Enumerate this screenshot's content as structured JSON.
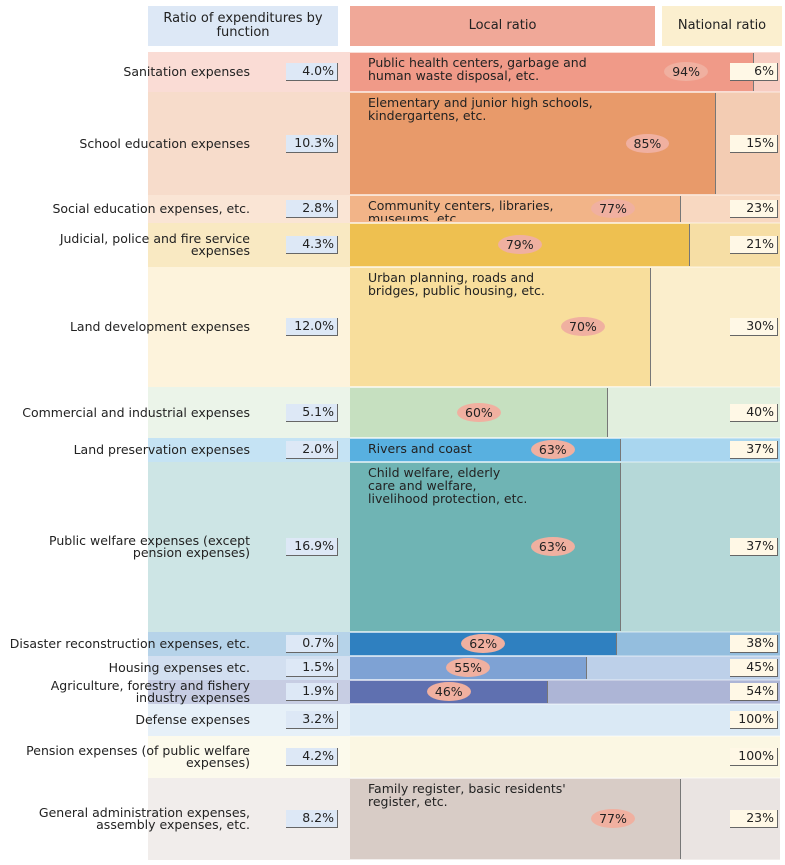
{
  "chart_data": {
    "type": "mekko",
    "headers": [
      "Ratio of expenditures by function",
      "Local ratio",
      "National ratio"
    ],
    "rows": [
      {
        "name": "Sanitation expenses",
        "share": 4.0,
        "share_label": "4.0%",
        "local": 94,
        "local_label": "94%",
        "national": 6,
        "national_label": "6%",
        "description": "Public health centers, garbage and human waste disposal, etc.",
        "color": "#f09a88"
      },
      {
        "name": "School education expenses",
        "share": 10.3,
        "share_label": "10.3%",
        "local": 85,
        "local_label": "85%",
        "national": 15,
        "national_label": "15%",
        "description": "Elementary and junior high schools, kindergartens, etc.",
        "color": "#e89a6a"
      },
      {
        "name": "Social education expenses, etc.",
        "share": 2.8,
        "share_label": "2.8%",
        "local": 77,
        "local_label": "77%",
        "national": 23,
        "national_label": "23%",
        "description": "Community centers, libraries, museums, etc.",
        "color": "#f2b488"
      },
      {
        "name": "Judicial, police and fire service expenses",
        "share": 4.3,
        "share_label": "4.3%",
        "local": 79,
        "local_label": "79%",
        "national": 21,
        "national_label": "21%",
        "color": "#eec050"
      },
      {
        "name": "Land development expenses",
        "share": 12.0,
        "share_label": "12.0%",
        "local": 70,
        "local_label": "70%",
        "national": 30,
        "national_label": "30%",
        "description": "Urban planning, roads and bridges, public housing, etc.",
        "color": "#f8de9c"
      },
      {
        "name": "Commercial and industrial expenses",
        "share": 5.1,
        "share_label": "5.1%",
        "local": 60,
        "local_label": "60%",
        "national": 40,
        "national_label": "40%",
        "color": "#c6e0c0"
      },
      {
        "name": "Land preservation expenses",
        "share": 2.0,
        "share_label": "2.0%",
        "local": 63,
        "local_label": "63%",
        "national": 37,
        "national_label": "37%",
        "description": "Rivers and coast",
        "color": "#58b0e0"
      },
      {
        "name": "Public welfare expenses (except pension expenses)",
        "share": 16.9,
        "share_label": "16.9%",
        "local": 63,
        "local_label": "63%",
        "national": 37,
        "national_label": "37%",
        "description": "Child welfare, elderly care and welfare, livelihood protection, etc.",
        "color": "#6fb4b4"
      },
      {
        "name": "Disaster reconstruction expenses, etc.",
        "share": 0.7,
        "share_label": "0.7%",
        "local": 62,
        "local_label": "62%",
        "national": 38,
        "national_label": "38%",
        "color": "#2f80c0"
      },
      {
        "name": "Housing expenses etc.",
        "share": 1.5,
        "share_label": "1.5%",
        "local": 55,
        "local_label": "55%",
        "national": 45,
        "national_label": "45%",
        "color": "#7ea2d4"
      },
      {
        "name": "Agriculture, forestry and fishery industry expenses",
        "share": 1.9,
        "share_label": "1.9%",
        "local": 46,
        "local_label": "46%",
        "national": 54,
        "national_label": "54%",
        "color": "#5f70b0"
      },
      {
        "name": "Defense expenses",
        "share": 3.2,
        "share_label": "3.2%",
        "national": 100,
        "national_label": "100%",
        "color": "#b8d4ea"
      },
      {
        "name": "Pension expenses (of public welfare expenses)",
        "share": 4.2,
        "share_label": "4.2%",
        "national": 100,
        "national_label": "100%",
        "color": "#f6f0c8"
      },
      {
        "name": "General administration expenses, assembly expenses, etc.",
        "share": 8.2,
        "share_label": "8.2%",
        "local": 77,
        "local_label": "77%",
        "national": 23,
        "national_label": "23%",
        "description": "Family register, basic residents' register, etc.",
        "color": "#d8ccc6"
      }
    ]
  }
}
